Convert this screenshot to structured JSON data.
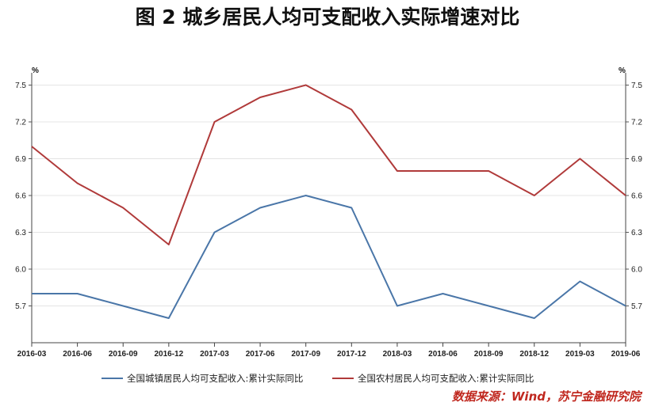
{
  "chart_data": {
    "type": "line",
    "title": "图 2    城乡居民人均可支配收入实际增速对比",
    "y_unit_left": "%",
    "y_unit_right": "%",
    "ylim": [
      5.4,
      7.6
    ],
    "yticks": [
      5.7,
      6.0,
      6.3,
      6.6,
      6.9,
      7.2,
      7.5
    ],
    "ytick_labels": [
      "5.7",
      "6.0",
      "6.3",
      "6.6",
      "6.9",
      "7.2",
      "7.5"
    ],
    "categories": [
      "2016-03",
      "2016-06",
      "2016-09",
      "2016-12",
      "2017-03",
      "2017-06",
      "2017-09",
      "2017-12",
      "2018-03",
      "2018-06",
      "2018-09",
      "2018-12",
      "2019-03",
      "2019-06"
    ],
    "grid": true,
    "legend_position": "bottom",
    "series": [
      {
        "name": "全国城镇居民人均可支配收入:累计实际同比",
        "color": "#4a76a8",
        "values": [
          5.8,
          5.8,
          5.7,
          5.6,
          6.3,
          6.5,
          6.6,
          6.5,
          5.7,
          5.8,
          5.7,
          5.6,
          5.9,
          5.7
        ]
      },
      {
        "name": "全国农村居民人均可支配收入:累计实际同比",
        "color": "#b03a3a",
        "values": [
          7.0,
          6.7,
          6.5,
          6.2,
          7.2,
          7.4,
          7.5,
          7.3,
          6.8,
          6.8,
          6.8,
          6.6,
          6.9,
          6.6
        ]
      }
    ],
    "source": "数据来源：Wind，苏宁金融研究院"
  }
}
